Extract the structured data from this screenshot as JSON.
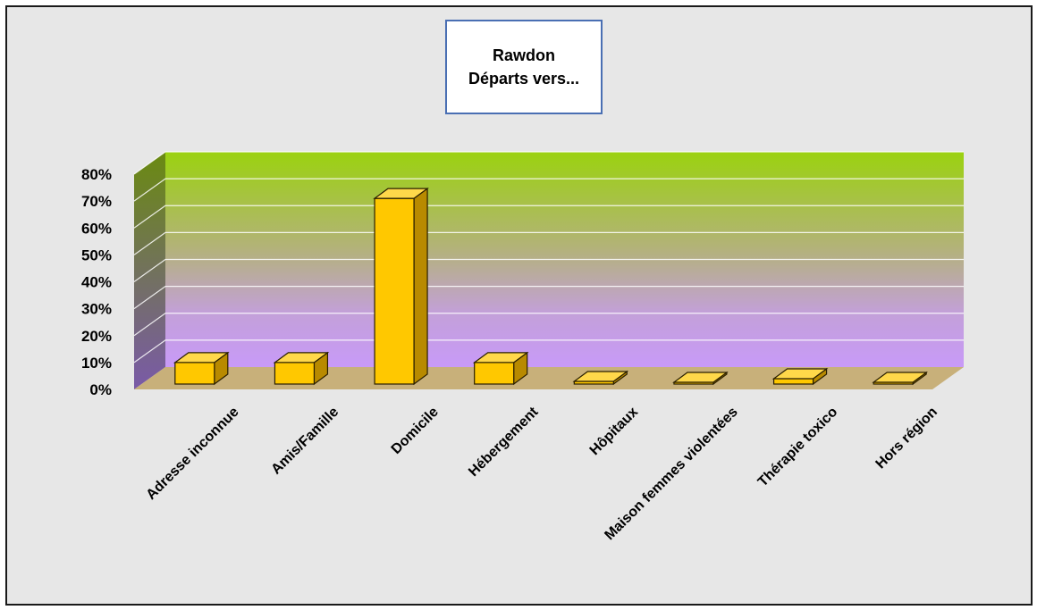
{
  "chart_data": {
    "type": "bar",
    "title": "Rawdon",
    "subtitle": "Départs vers...",
    "categories": [
      "Adresse inconnue",
      "Amis/Famille",
      "Domicile",
      "Hébergement",
      "Hôpitaux",
      "Maison femmes violentées",
      "Thérapie toxico",
      "Hors région"
    ],
    "values": [
      8,
      8,
      69,
      8,
      1,
      0.5,
      2,
      0
    ],
    "ylim": [
      0,
      80
    ],
    "yticks": [
      "0%",
      "10%",
      "20%",
      "30%",
      "40%",
      "50%",
      "60%",
      "70%",
      "80%"
    ],
    "grid": true,
    "legend": "none",
    "colors": {
      "bar_front": "#ffc800",
      "bar_top": "#ffd84a",
      "bar_side": "#b88a00",
      "floor": "#c8b07a",
      "wall_top": "#9bd20f",
      "wall_bottom": "#c998f5"
    }
  }
}
